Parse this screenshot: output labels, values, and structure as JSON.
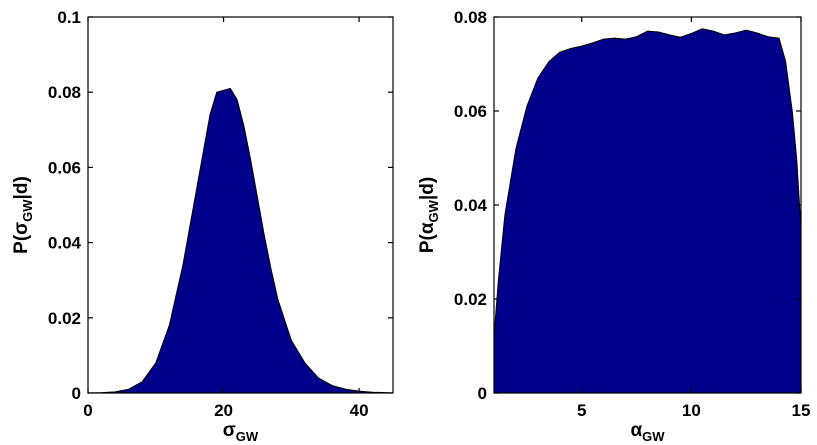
{
  "colors": {
    "fill": "#00008b",
    "axis": "#000000"
  },
  "chart_data": [
    {
      "type": "area",
      "xlabel": {
        "symbol": "σ",
        "sub": "GW"
      },
      "ylabel": {
        "prefix": "P(",
        "symbol": "σ",
        "sub": "GW",
        "suffix": "|d)"
      },
      "xlim": [
        0,
        45
      ],
      "ylim": [
        0,
        0.1
      ],
      "xticks": [
        0,
        20,
        40
      ],
      "yticks": [
        0,
        0.02,
        0.04,
        0.06,
        0.08,
        0.1
      ],
      "xtick_labels": [
        "0",
        "20",
        "40"
      ],
      "ytick_labels": [
        "0",
        "0.02",
        "0.04",
        "0.06",
        "0.08",
        "0.1"
      ],
      "grid": false,
      "series": [
        {
          "x": [
            0,
            2,
            4,
            6,
            8,
            10,
            12,
            14,
            15,
            16,
            17,
            18,
            19,
            20,
            21,
            22,
            23,
            24,
            25,
            26,
            27,
            28,
            30,
            32,
            34,
            36,
            38,
            40,
            42,
            44,
            45
          ],
          "y": [
            0,
            0.0001,
            0.0003,
            0.001,
            0.003,
            0.008,
            0.018,
            0.034,
            0.044,
            0.054,
            0.064,
            0.074,
            0.08,
            0.0805,
            0.081,
            0.078,
            0.071,
            0.062,
            0.052,
            0.042,
            0.033,
            0.025,
            0.014,
            0.008,
            0.004,
            0.002,
            0.001,
            0.0005,
            0.0002,
            0.0001,
            0
          ]
        }
      ]
    },
    {
      "type": "area",
      "xlabel": {
        "symbol": "α",
        "sub": "GW"
      },
      "ylabel": {
        "prefix": "P(",
        "symbol": "α",
        "sub": "GW",
        "suffix": "|d)"
      },
      "xlim": [
        1,
        15
      ],
      "ylim": [
        0,
        0.08
      ],
      "xticks": [
        5,
        10,
        15
      ],
      "yticks": [
        0,
        0.02,
        0.04,
        0.06,
        0.08
      ],
      "xtick_labels": [
        "5",
        "10",
        "15"
      ],
      "ytick_labels": [
        "0",
        "0.02",
        "0.04",
        "0.06",
        "0.08"
      ],
      "grid": false,
      "series": [
        {
          "x": [
            1,
            1.2,
            1.5,
            2,
            2.5,
            3,
            3.5,
            4,
            4.5,
            5,
            5.5,
            6,
            6.5,
            7,
            7.5,
            8,
            8.5,
            9,
            9.5,
            10,
            10.5,
            11,
            11.5,
            12,
            12.5,
            13,
            13.5,
            14,
            14.3,
            14.6,
            14.8,
            15
          ],
          "y": [
            0.012,
            0.024,
            0.038,
            0.052,
            0.061,
            0.067,
            0.0705,
            0.0725,
            0.0733,
            0.0738,
            0.0745,
            0.0753,
            0.0755,
            0.0753,
            0.0758,
            0.077,
            0.0768,
            0.0762,
            0.0757,
            0.0765,
            0.0775,
            0.077,
            0.0762,
            0.0766,
            0.0772,
            0.0766,
            0.0758,
            0.0755,
            0.0705,
            0.06,
            0.05,
            0.035
          ]
        }
      ]
    }
  ]
}
